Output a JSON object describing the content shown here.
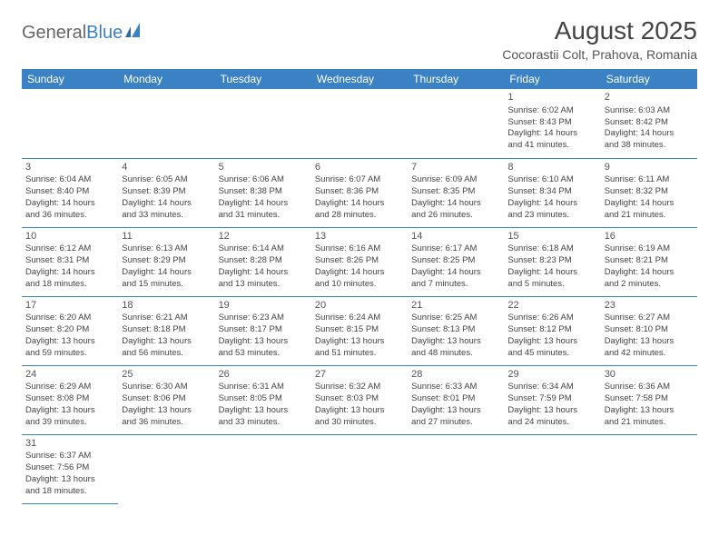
{
  "logo": {
    "part1": "General",
    "part2": "Blue"
  },
  "title": "August 2025",
  "location": "Cocorastii Colt, Prahova, Romania",
  "colors": {
    "header_bg": "#3b82c4",
    "header_text": "#ffffff",
    "border": "#3b82c4",
    "text": "#444444",
    "logo_blue": "#3b7fc4"
  },
  "weekdays": [
    "Sunday",
    "Monday",
    "Tuesday",
    "Wednesday",
    "Thursday",
    "Friday",
    "Saturday"
  ],
  "weeks": [
    [
      null,
      null,
      null,
      null,
      null,
      {
        "d": "1",
        "sr": "Sunrise: 6:02 AM",
        "ss": "Sunset: 8:43 PM",
        "dl1": "Daylight: 14 hours",
        "dl2": "and 41 minutes."
      },
      {
        "d": "2",
        "sr": "Sunrise: 6:03 AM",
        "ss": "Sunset: 8:42 PM",
        "dl1": "Daylight: 14 hours",
        "dl2": "and 38 minutes."
      }
    ],
    [
      {
        "d": "3",
        "sr": "Sunrise: 6:04 AM",
        "ss": "Sunset: 8:40 PM",
        "dl1": "Daylight: 14 hours",
        "dl2": "and 36 minutes."
      },
      {
        "d": "4",
        "sr": "Sunrise: 6:05 AM",
        "ss": "Sunset: 8:39 PM",
        "dl1": "Daylight: 14 hours",
        "dl2": "and 33 minutes."
      },
      {
        "d": "5",
        "sr": "Sunrise: 6:06 AM",
        "ss": "Sunset: 8:38 PM",
        "dl1": "Daylight: 14 hours",
        "dl2": "and 31 minutes."
      },
      {
        "d": "6",
        "sr": "Sunrise: 6:07 AM",
        "ss": "Sunset: 8:36 PM",
        "dl1": "Daylight: 14 hours",
        "dl2": "and 28 minutes."
      },
      {
        "d": "7",
        "sr": "Sunrise: 6:09 AM",
        "ss": "Sunset: 8:35 PM",
        "dl1": "Daylight: 14 hours",
        "dl2": "and 26 minutes."
      },
      {
        "d": "8",
        "sr": "Sunrise: 6:10 AM",
        "ss": "Sunset: 8:34 PM",
        "dl1": "Daylight: 14 hours",
        "dl2": "and 23 minutes."
      },
      {
        "d": "9",
        "sr": "Sunrise: 6:11 AM",
        "ss": "Sunset: 8:32 PM",
        "dl1": "Daylight: 14 hours",
        "dl2": "and 21 minutes."
      }
    ],
    [
      {
        "d": "10",
        "sr": "Sunrise: 6:12 AM",
        "ss": "Sunset: 8:31 PM",
        "dl1": "Daylight: 14 hours",
        "dl2": "and 18 minutes."
      },
      {
        "d": "11",
        "sr": "Sunrise: 6:13 AM",
        "ss": "Sunset: 8:29 PM",
        "dl1": "Daylight: 14 hours",
        "dl2": "and 15 minutes."
      },
      {
        "d": "12",
        "sr": "Sunrise: 6:14 AM",
        "ss": "Sunset: 8:28 PM",
        "dl1": "Daylight: 14 hours",
        "dl2": "and 13 minutes."
      },
      {
        "d": "13",
        "sr": "Sunrise: 6:16 AM",
        "ss": "Sunset: 8:26 PM",
        "dl1": "Daylight: 14 hours",
        "dl2": "and 10 minutes."
      },
      {
        "d": "14",
        "sr": "Sunrise: 6:17 AM",
        "ss": "Sunset: 8:25 PM",
        "dl1": "Daylight: 14 hours",
        "dl2": "and 7 minutes."
      },
      {
        "d": "15",
        "sr": "Sunrise: 6:18 AM",
        "ss": "Sunset: 8:23 PM",
        "dl1": "Daylight: 14 hours",
        "dl2": "and 5 minutes."
      },
      {
        "d": "16",
        "sr": "Sunrise: 6:19 AM",
        "ss": "Sunset: 8:21 PM",
        "dl1": "Daylight: 14 hours",
        "dl2": "and 2 minutes."
      }
    ],
    [
      {
        "d": "17",
        "sr": "Sunrise: 6:20 AM",
        "ss": "Sunset: 8:20 PM",
        "dl1": "Daylight: 13 hours",
        "dl2": "and 59 minutes."
      },
      {
        "d": "18",
        "sr": "Sunrise: 6:21 AM",
        "ss": "Sunset: 8:18 PM",
        "dl1": "Daylight: 13 hours",
        "dl2": "and 56 minutes."
      },
      {
        "d": "19",
        "sr": "Sunrise: 6:23 AM",
        "ss": "Sunset: 8:17 PM",
        "dl1": "Daylight: 13 hours",
        "dl2": "and 53 minutes."
      },
      {
        "d": "20",
        "sr": "Sunrise: 6:24 AM",
        "ss": "Sunset: 8:15 PM",
        "dl1": "Daylight: 13 hours",
        "dl2": "and 51 minutes."
      },
      {
        "d": "21",
        "sr": "Sunrise: 6:25 AM",
        "ss": "Sunset: 8:13 PM",
        "dl1": "Daylight: 13 hours",
        "dl2": "and 48 minutes."
      },
      {
        "d": "22",
        "sr": "Sunrise: 6:26 AM",
        "ss": "Sunset: 8:12 PM",
        "dl1": "Daylight: 13 hours",
        "dl2": "and 45 minutes."
      },
      {
        "d": "23",
        "sr": "Sunrise: 6:27 AM",
        "ss": "Sunset: 8:10 PM",
        "dl1": "Daylight: 13 hours",
        "dl2": "and 42 minutes."
      }
    ],
    [
      {
        "d": "24",
        "sr": "Sunrise: 6:29 AM",
        "ss": "Sunset: 8:08 PM",
        "dl1": "Daylight: 13 hours",
        "dl2": "and 39 minutes."
      },
      {
        "d": "25",
        "sr": "Sunrise: 6:30 AM",
        "ss": "Sunset: 8:06 PM",
        "dl1": "Daylight: 13 hours",
        "dl2": "and 36 minutes."
      },
      {
        "d": "26",
        "sr": "Sunrise: 6:31 AM",
        "ss": "Sunset: 8:05 PM",
        "dl1": "Daylight: 13 hours",
        "dl2": "and 33 minutes."
      },
      {
        "d": "27",
        "sr": "Sunrise: 6:32 AM",
        "ss": "Sunset: 8:03 PM",
        "dl1": "Daylight: 13 hours",
        "dl2": "and 30 minutes."
      },
      {
        "d": "28",
        "sr": "Sunrise: 6:33 AM",
        "ss": "Sunset: 8:01 PM",
        "dl1": "Daylight: 13 hours",
        "dl2": "and 27 minutes."
      },
      {
        "d": "29",
        "sr": "Sunrise: 6:34 AM",
        "ss": "Sunset: 7:59 PM",
        "dl1": "Daylight: 13 hours",
        "dl2": "and 24 minutes."
      },
      {
        "d": "30",
        "sr": "Sunrise: 6:36 AM",
        "ss": "Sunset: 7:58 PM",
        "dl1": "Daylight: 13 hours",
        "dl2": "and 21 minutes."
      }
    ],
    [
      {
        "d": "31",
        "sr": "Sunrise: 6:37 AM",
        "ss": "Sunset: 7:56 PM",
        "dl1": "Daylight: 13 hours",
        "dl2": "and 18 minutes."
      },
      null,
      null,
      null,
      null,
      null,
      null
    ]
  ]
}
